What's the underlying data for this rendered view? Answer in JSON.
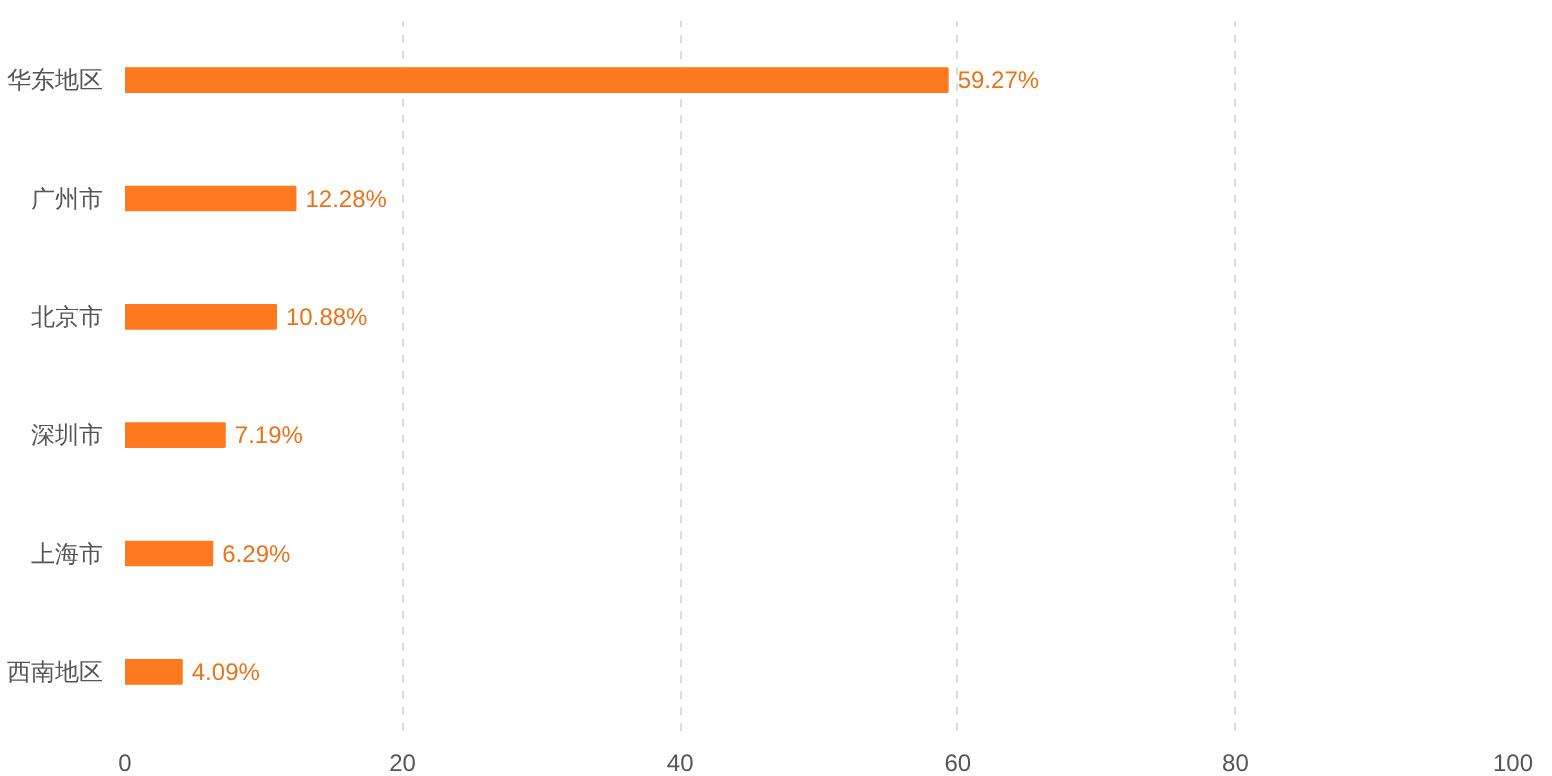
{
  "chart_data": {
    "type": "bar",
    "orientation": "horizontal",
    "categories": [
      "华东地区",
      "广州市",
      "北京市",
      "深圳市",
      "上海市",
      "西南地区"
    ],
    "values": [
      59.27,
      12.28,
      10.88,
      7.19,
      6.29,
      4.09
    ],
    "value_labels": [
      "59.27%",
      "12.28%",
      "10.88%",
      "7.19%",
      "6.29%",
      "4.09%"
    ],
    "color": "#ff7a1f",
    "xlim": [
      0,
      100
    ],
    "xticks": [
      0,
      20,
      40,
      60,
      80,
      100
    ],
    "grid": "x"
  }
}
